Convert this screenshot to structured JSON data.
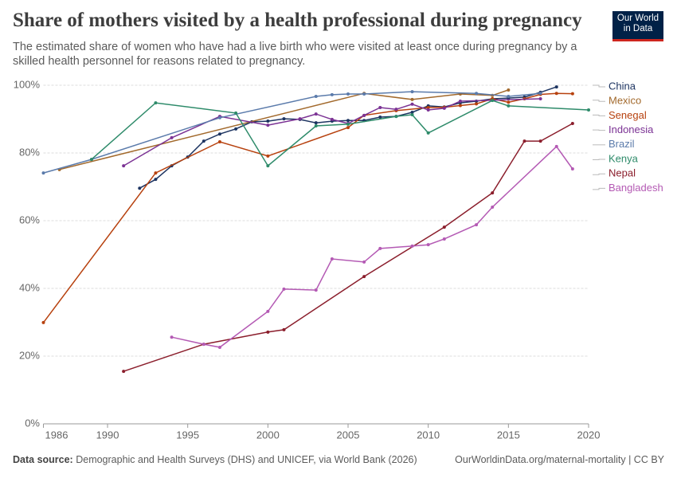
{
  "chart_data": {
    "type": "line",
    "title": "Share of mothers visited by a health professional during pregnancy",
    "subtitle": "The estimated share of women who have had a live birth who were visited at least once during pregnancy by a skilled health personnel for reasons related to pregnancy.",
    "logo": [
      "Our World",
      "in Data"
    ],
    "source_label": "Data source:",
    "source": "Demographic and Health Surveys (DHS) and UNICEF, via World Bank (2026)",
    "footer_url": "OurWorldinData.org/maternal-mortality | CC BY",
    "xlim": [
      1986,
      2020
    ],
    "xticks": [
      1986,
      1990,
      1995,
      2000,
      2005,
      2010,
      2015,
      2020
    ],
    "ylim": [
      0,
      100
    ],
    "yticks": [
      {
        "value": 0,
        "label": "0%"
      },
      {
        "value": 20,
        "label": "20%"
      },
      {
        "value": 40,
        "label": "40%"
      },
      {
        "value": 60,
        "label": "60%"
      },
      {
        "value": 80,
        "label": "80%"
      },
      {
        "value": 100,
        "label": "100%"
      }
    ],
    "grid": true,
    "series": [
      {
        "name": "China",
        "color": "#1d3461",
        "x": [
          1992,
          1993,
          1994,
          1995,
          1996,
          1997,
          1998,
          1999,
          2000,
          2001,
          2002,
          2003,
          2004,
          2005,
          2006,
          2007,
          2008,
          2009,
          2010,
          2011,
          2012,
          2013,
          2014,
          2015,
          2016,
          2017,
          2018
        ],
        "values": [
          69.6,
          72.2,
          76.2,
          78.8,
          83.5,
          85.6,
          87.1,
          89.2,
          89.4,
          90.1,
          89.9,
          88.9,
          89.4,
          89.6,
          89.6,
          90.6,
          90.8,
          92.0,
          93.9,
          93.6,
          94.8,
          95.3,
          96.0,
          96.2,
          96.5,
          97.9,
          99.5
        ]
      },
      {
        "name": "Mexico",
        "color": "#a2692c",
        "x": [
          1987,
          2006,
          2009,
          2012,
          2014,
          2015
        ],
        "values": [
          75.1,
          97.6,
          95.8,
          97.4,
          97.0,
          98.6
        ]
      },
      {
        "name": "Senegal",
        "color": "#b7410e",
        "x": [
          1986,
          1993,
          1997,
          2000,
          2005,
          2006,
          2008,
          2010,
          2011,
          2012,
          2013,
          2014,
          2015,
          2016,
          2017,
          2018,
          2019
        ],
        "values": [
          29.9,
          74.1,
          83.3,
          79.1,
          87.5,
          91.1,
          92.5,
          93.4,
          93.5,
          94.0,
          94.5,
          96.0,
          95.0,
          96.0,
          97.3,
          97.6,
          97.5
        ]
      },
      {
        "name": "Indonesia",
        "color": "#7b3294",
        "x": [
          1991,
          1994,
          1997,
          2000,
          2002,
          2003,
          2004,
          2005,
          2006,
          2007,
          2008,
          2009,
          2010,
          2011,
          2012,
          2017
        ],
        "values": [
          76.2,
          84.5,
          90.8,
          88.2,
          90.1,
          91.5,
          89.9,
          88.7,
          91.1,
          93.4,
          92.9,
          94.4,
          92.7,
          93.2,
          95.3,
          96.0
        ]
      },
      {
        "name": "Brazil",
        "color": "#5b7bab",
        "x": [
          1986,
          1989,
          1997,
          2003,
          2004,
          2005,
          2006,
          2009,
          2013,
          2015,
          2017
        ],
        "values": [
          74.1,
          78.1,
          90.4,
          96.7,
          97.2,
          97.4,
          97.4,
          98.1,
          97.6,
          96.7,
          97.6
        ]
      },
      {
        "name": "Kenya",
        "color": "#2e8b6a",
        "x": [
          1989,
          1993,
          1998,
          2000,
          2003,
          2005,
          2008,
          2009,
          2010,
          2014,
          2015,
          2020
        ],
        "values": [
          78.1,
          94.8,
          91.8,
          76.2,
          88.0,
          88.5,
          90.8,
          91.3,
          85.9,
          95.5,
          93.9,
          92.7
        ]
      },
      {
        "name": "Nepal",
        "color": "#8b1e2c",
        "x": [
          1991,
          1996,
          2000,
          2001,
          2006,
          2011,
          2014,
          2016,
          2017,
          2019
        ],
        "values": [
          15.5,
          23.5,
          27.1,
          27.8,
          43.5,
          58.1,
          68.2,
          83.5,
          83.5,
          88.7
        ]
      },
      {
        "name": "Bangladesh",
        "color": "#b45ab4",
        "x": [
          1994,
          1996,
          1997,
          2000,
          2001,
          2003,
          2004,
          2006,
          2007,
          2009,
          2010,
          2011,
          2013,
          2014,
          2018,
          2019
        ],
        "values": [
          25.6,
          23.5,
          22.6,
          33.2,
          39.8,
          39.5,
          48.7,
          47.8,
          51.8,
          52.5,
          52.9,
          54.6,
          58.8,
          64.0,
          81.9,
          75.3
        ]
      }
    ]
  }
}
